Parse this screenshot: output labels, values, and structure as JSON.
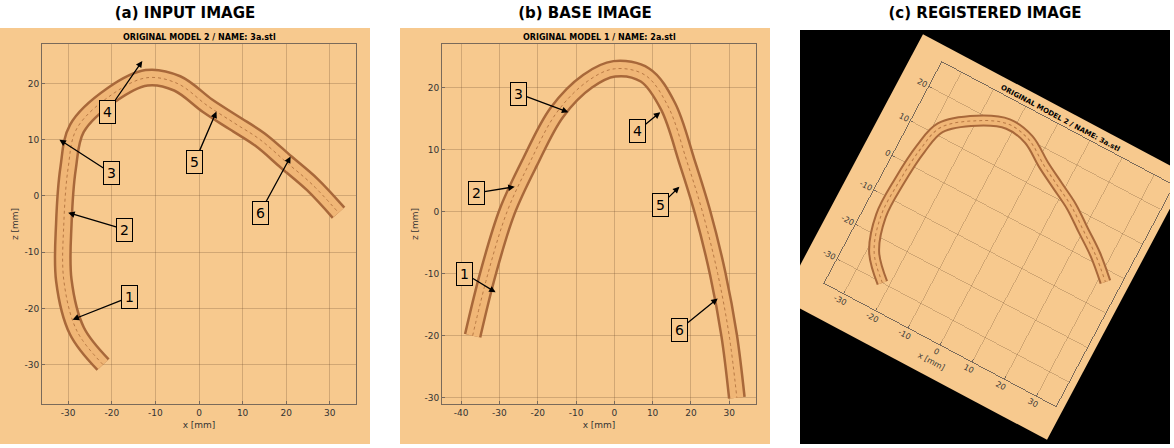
{
  "chart_data": [
    {
      "type": "line",
      "panel_title": "(a) INPUT IMAGE",
      "title": "ORIGINAL MODEL 2 / NAME: 3a.stl",
      "x_label": "x [mm]",
      "y_label": "z [mm]",
      "grid": true,
      "xlim": [
        -36,
        36
      ],
      "xticks": [
        -30,
        -20,
        -10,
        0,
        10,
        20,
        30
      ],
      "ylim": [
        -37,
        27
      ],
      "yticks": [
        -30,
        -20,
        -10,
        0,
        10,
        20
      ],
      "outline": {
        "x": [
          -22,
          -28,
          -31,
          -31,
          -30,
          -28,
          -20,
          -12,
          -5,
          2,
          8,
          14,
          20,
          26,
          32
        ],
        "y": [
          -30,
          -24,
          -15,
          -5,
          5,
          12,
          18,
          21,
          20,
          16,
          13,
          10,
          6,
          2,
          -3
        ]
      },
      "annotations": [
        {
          "text": "1",
          "x": -29,
          "y": -22,
          "ax": -16,
          "ay": -18
        },
        {
          "text": "2",
          "x": -30,
          "y": -3,
          "ax": -17,
          "ay": -6
        },
        {
          "text": "3",
          "x": -32,
          "y": 10,
          "ax": -20,
          "ay": 4
        },
        {
          "text": "4",
          "x": -13,
          "y": 24,
          "ax": -21,
          "ay": 15
        },
        {
          "text": "5",
          "x": 4,
          "y": 15,
          "ax": -1,
          "ay": 6
        },
        {
          "text": "6",
          "x": 21,
          "y": 7,
          "ax": 14,
          "ay": -3
        }
      ]
    },
    {
      "type": "line",
      "panel_title": "(b) BASE IMAGE",
      "title": "ORIGINAL MODEL 1 / NAME: 2a.stl",
      "x_label": "x [mm]",
      "y_label": "z [mm]",
      "grid": true,
      "xlim": [
        -45,
        37
      ],
      "xticks": [
        -40,
        -30,
        -20,
        -10,
        0,
        10,
        20,
        30
      ],
      "ylim": [
        -31,
        27
      ],
      "yticks": [
        -30,
        -20,
        -10,
        0,
        10,
        20
      ],
      "outline": {
        "x": [
          -37,
          -33,
          -28,
          -22,
          -15,
          -7,
          0,
          8,
          14,
          19,
          23,
          27,
          30,
          32
        ],
        "y": [
          -20,
          -10,
          0,
          8,
          16,
          21,
          23,
          22,
          17,
          8,
          0,
          -10,
          -20,
          -30
        ]
      },
      "annotations": [
        {
          "text": "1",
          "x": -31,
          "y": -13,
          "ax": -39,
          "ay": -10
        },
        {
          "text": "2",
          "x": -26,
          "y": 4,
          "ax": -36,
          "ay": 3
        },
        {
          "text": "3",
          "x": -12,
          "y": 16,
          "ax": -25,
          "ay": 19
        },
        {
          "text": "4",
          "x": 12,
          "y": 16,
          "ax": 6,
          "ay": 13
        },
        {
          "text": "5",
          "x": 17,
          "y": 4,
          "ax": 12,
          "ay": 1
        },
        {
          "text": "6",
          "x": 27,
          "y": -14,
          "ax": 17,
          "ay": -19
        }
      ]
    },
    {
      "type": "line",
      "panel_title": "(c) REGISTERED IMAGE",
      "title": "ORIGINAL MODEL 2 / NAME: 3a.stl",
      "x_label": "x [mm]",
      "grid": true,
      "xlim": [
        -36,
        36
      ],
      "xticks": [
        -30,
        -20,
        -10,
        0,
        10,
        20,
        30
      ],
      "ylim": [
        -37,
        27
      ],
      "yticks": [
        -30,
        -20,
        -10,
        0,
        10,
        20
      ],
      "outline": {
        "x": [
          -22,
          -28,
          -31,
          -31,
          -30,
          -28,
          -20,
          -12,
          -5,
          2,
          8,
          14,
          20,
          26,
          32
        ],
        "y": [
          -30,
          -24,
          -15,
          -5,
          5,
          12,
          18,
          21,
          20,
          16,
          13,
          10,
          6,
          2,
          -3
        ]
      },
      "annotations": []
    }
  ]
}
